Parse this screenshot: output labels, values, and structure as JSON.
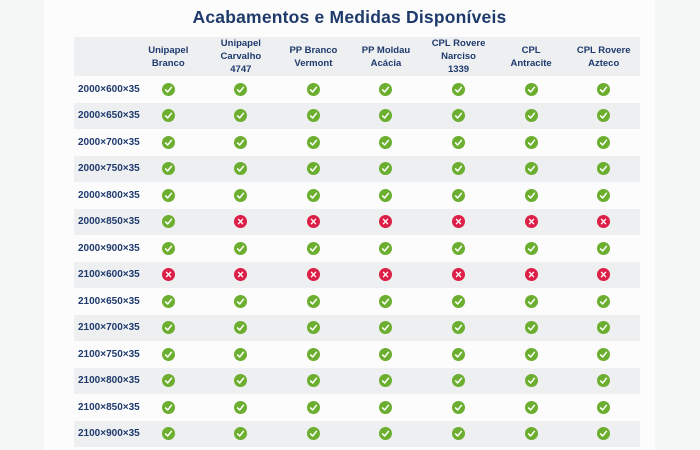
{
  "page": {
    "title": "Acabamentos e Medidas Disponíveis"
  },
  "colors": {
    "heading_navy": "#1d3a6b",
    "available_green": "#6cae2f",
    "unavailable_red": "#dc1f46",
    "stripe_gray": "#eeeff0",
    "card_background": "#fcfcfc",
    "page_background": "#f5f6f6"
  },
  "icons": {
    "available": "check-circle-icon",
    "unavailable": "x-circle-icon"
  },
  "table": {
    "size_column_header": "",
    "columns": [
      {
        "line1": "Unipapel",
        "line2": "Branco"
      },
      {
        "line1": "Unipapel Carvalho",
        "line2": "4747"
      },
      {
        "line1": "PP Branco",
        "line2": "Vermont"
      },
      {
        "line1": "PP Moldau",
        "line2": "Acácia"
      },
      {
        "line1": "CPL Rovere Narciso",
        "line2": "1339"
      },
      {
        "line1": "CPL",
        "line2": "Antracite"
      },
      {
        "line1": "CPL Rovere",
        "line2": "Azteco"
      }
    ],
    "rows": [
      {
        "label": "2000×600×35",
        "availability": [
          "yes",
          "yes",
          "yes",
          "yes",
          "yes",
          "yes",
          "yes"
        ]
      },
      {
        "label": "2000×650×35",
        "availability": [
          "yes",
          "yes",
          "yes",
          "yes",
          "yes",
          "yes",
          "yes"
        ]
      },
      {
        "label": "2000×700×35",
        "availability": [
          "yes",
          "yes",
          "yes",
          "yes",
          "yes",
          "yes",
          "yes"
        ]
      },
      {
        "label": "2000×750×35",
        "availability": [
          "yes",
          "yes",
          "yes",
          "yes",
          "yes",
          "yes",
          "yes"
        ]
      },
      {
        "label": "2000×800×35",
        "availability": [
          "yes",
          "yes",
          "yes",
          "yes",
          "yes",
          "yes",
          "yes"
        ]
      },
      {
        "label": "2000×850×35",
        "availability": [
          "yes",
          "no",
          "no",
          "no",
          "no",
          "no",
          "no"
        ]
      },
      {
        "label": "2000×900×35",
        "availability": [
          "yes",
          "yes",
          "yes",
          "yes",
          "yes",
          "yes",
          "yes"
        ]
      },
      {
        "label": "2100×600×35",
        "availability": [
          "no",
          "no",
          "no",
          "no",
          "no",
          "no",
          "no"
        ]
      },
      {
        "label": "2100×650×35",
        "availability": [
          "yes",
          "yes",
          "yes",
          "yes",
          "yes",
          "yes",
          "yes"
        ]
      },
      {
        "label": "2100×700×35",
        "availability": [
          "yes",
          "yes",
          "yes",
          "yes",
          "yes",
          "yes",
          "yes"
        ]
      },
      {
        "label": "2100×750×35",
        "availability": [
          "yes",
          "yes",
          "yes",
          "yes",
          "yes",
          "yes",
          "yes"
        ]
      },
      {
        "label": "2100×800×35",
        "availability": [
          "yes",
          "yes",
          "yes",
          "yes",
          "yes",
          "yes",
          "yes"
        ]
      },
      {
        "label": "2100×850×35",
        "availability": [
          "yes",
          "yes",
          "yes",
          "yes",
          "yes",
          "yes",
          "yes"
        ]
      },
      {
        "label": "2100×900×35",
        "availability": [
          "yes",
          "yes",
          "yes",
          "yes",
          "yes",
          "yes",
          "yes"
        ]
      }
    ]
  }
}
